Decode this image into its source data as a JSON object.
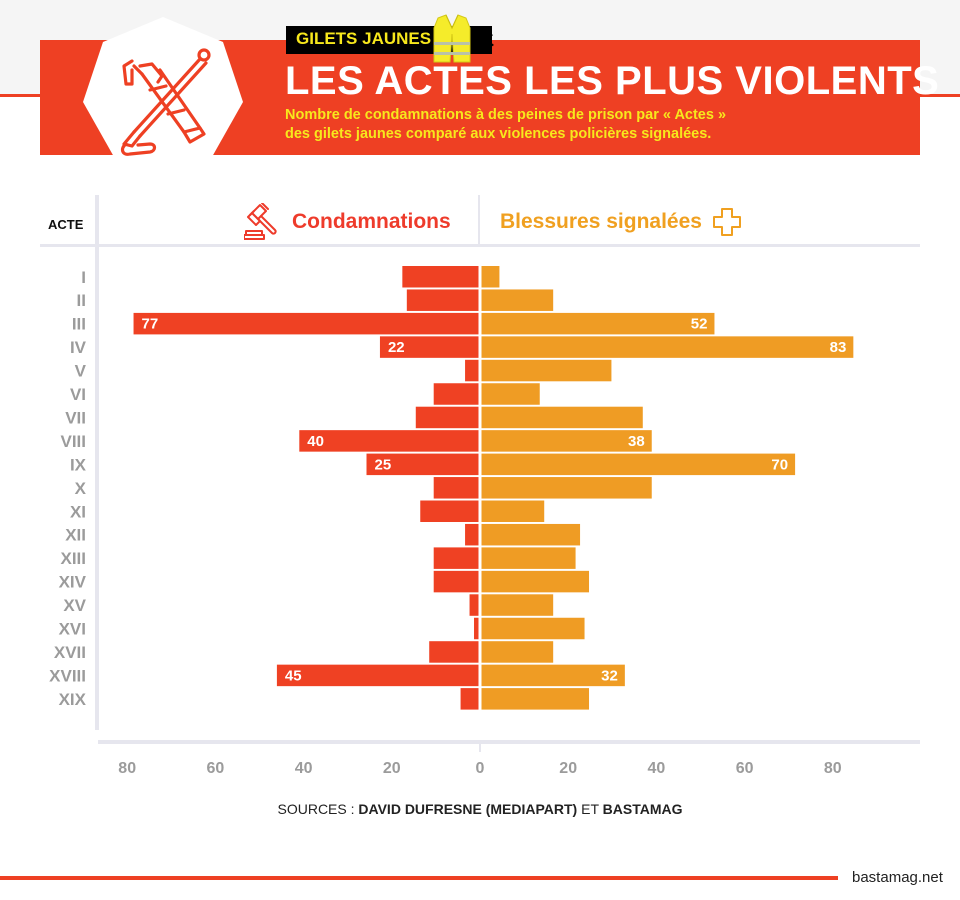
{
  "header": {
    "tag": "GILETS JAUNES",
    "title": "LES ACTES LES PLUS VIOLENTS",
    "subtitle_line1": "Nombre de condamnations à des peines de prison par « Actes »",
    "subtitle_line2": "des gilets jaunes comparé aux violences policières signalées.",
    "badge_icon": "crossed-tools-icon",
    "tag_icon": "yellow-vest-icon"
  },
  "colors": {
    "accent_red": "#ee4023",
    "bar_red": "#ef4123",
    "bar_orange": "#ef9c24",
    "tag_yellow": "#f7e81c",
    "label_gray": "#9b9b9b"
  },
  "columns": {
    "acte": "ACTE",
    "left": "Condamnations",
    "right": "Blessures signalées",
    "left_icon": "gavel-icon",
    "right_icon": "plus-cross-icon"
  },
  "chart_data": {
    "type": "bar",
    "orientation": "horizontal-diverging",
    "title": "LES ACTES LES PLUS VIOLENTS",
    "categories": [
      "I",
      "II",
      "III",
      "IV",
      "V",
      "VI",
      "VII",
      "VIII",
      "IX",
      "X",
      "XI",
      "XII",
      "XIII",
      "XIV",
      "XV",
      "XVI",
      "XVII",
      "XVIII",
      "XIX"
    ],
    "series": [
      {
        "name": "Condamnations",
        "side": "left",
        "values": [
          17,
          16,
          77,
          22,
          3,
          10,
          14,
          40,
          25,
          10,
          13,
          3,
          10,
          10,
          2,
          1,
          11,
          45,
          4
        ],
        "labeled": [
          false,
          false,
          true,
          true,
          false,
          false,
          false,
          true,
          true,
          false,
          false,
          false,
          false,
          false,
          false,
          false,
          false,
          true,
          false
        ]
      },
      {
        "name": "Blessures signalées",
        "side": "right",
        "values": [
          4,
          16,
          52,
          83,
          29,
          13,
          36,
          38,
          70,
          38,
          14,
          22,
          21,
          24,
          16,
          23,
          16,
          32,
          24
        ],
        "labeled": [
          false,
          false,
          true,
          true,
          false,
          false,
          false,
          true,
          true,
          false,
          false,
          false,
          false,
          false,
          false,
          false,
          false,
          true,
          false
        ]
      }
    ],
    "xlabel": "",
    "ylabel": "ACTE",
    "xlim": [
      -80,
      80
    ],
    "xticks": [
      80,
      60,
      40,
      20,
      0,
      20,
      40,
      60,
      80
    ],
    "grid": false,
    "legend": "top (column headers)"
  },
  "footer": {
    "sources_prefix": "SOURCES : ",
    "sources_bold1": "DAVID DUFRESNE (MEDIAPART)",
    "sources_mid": " ET ",
    "sources_bold2": "BASTAMAG",
    "site": "bastamag.net"
  }
}
